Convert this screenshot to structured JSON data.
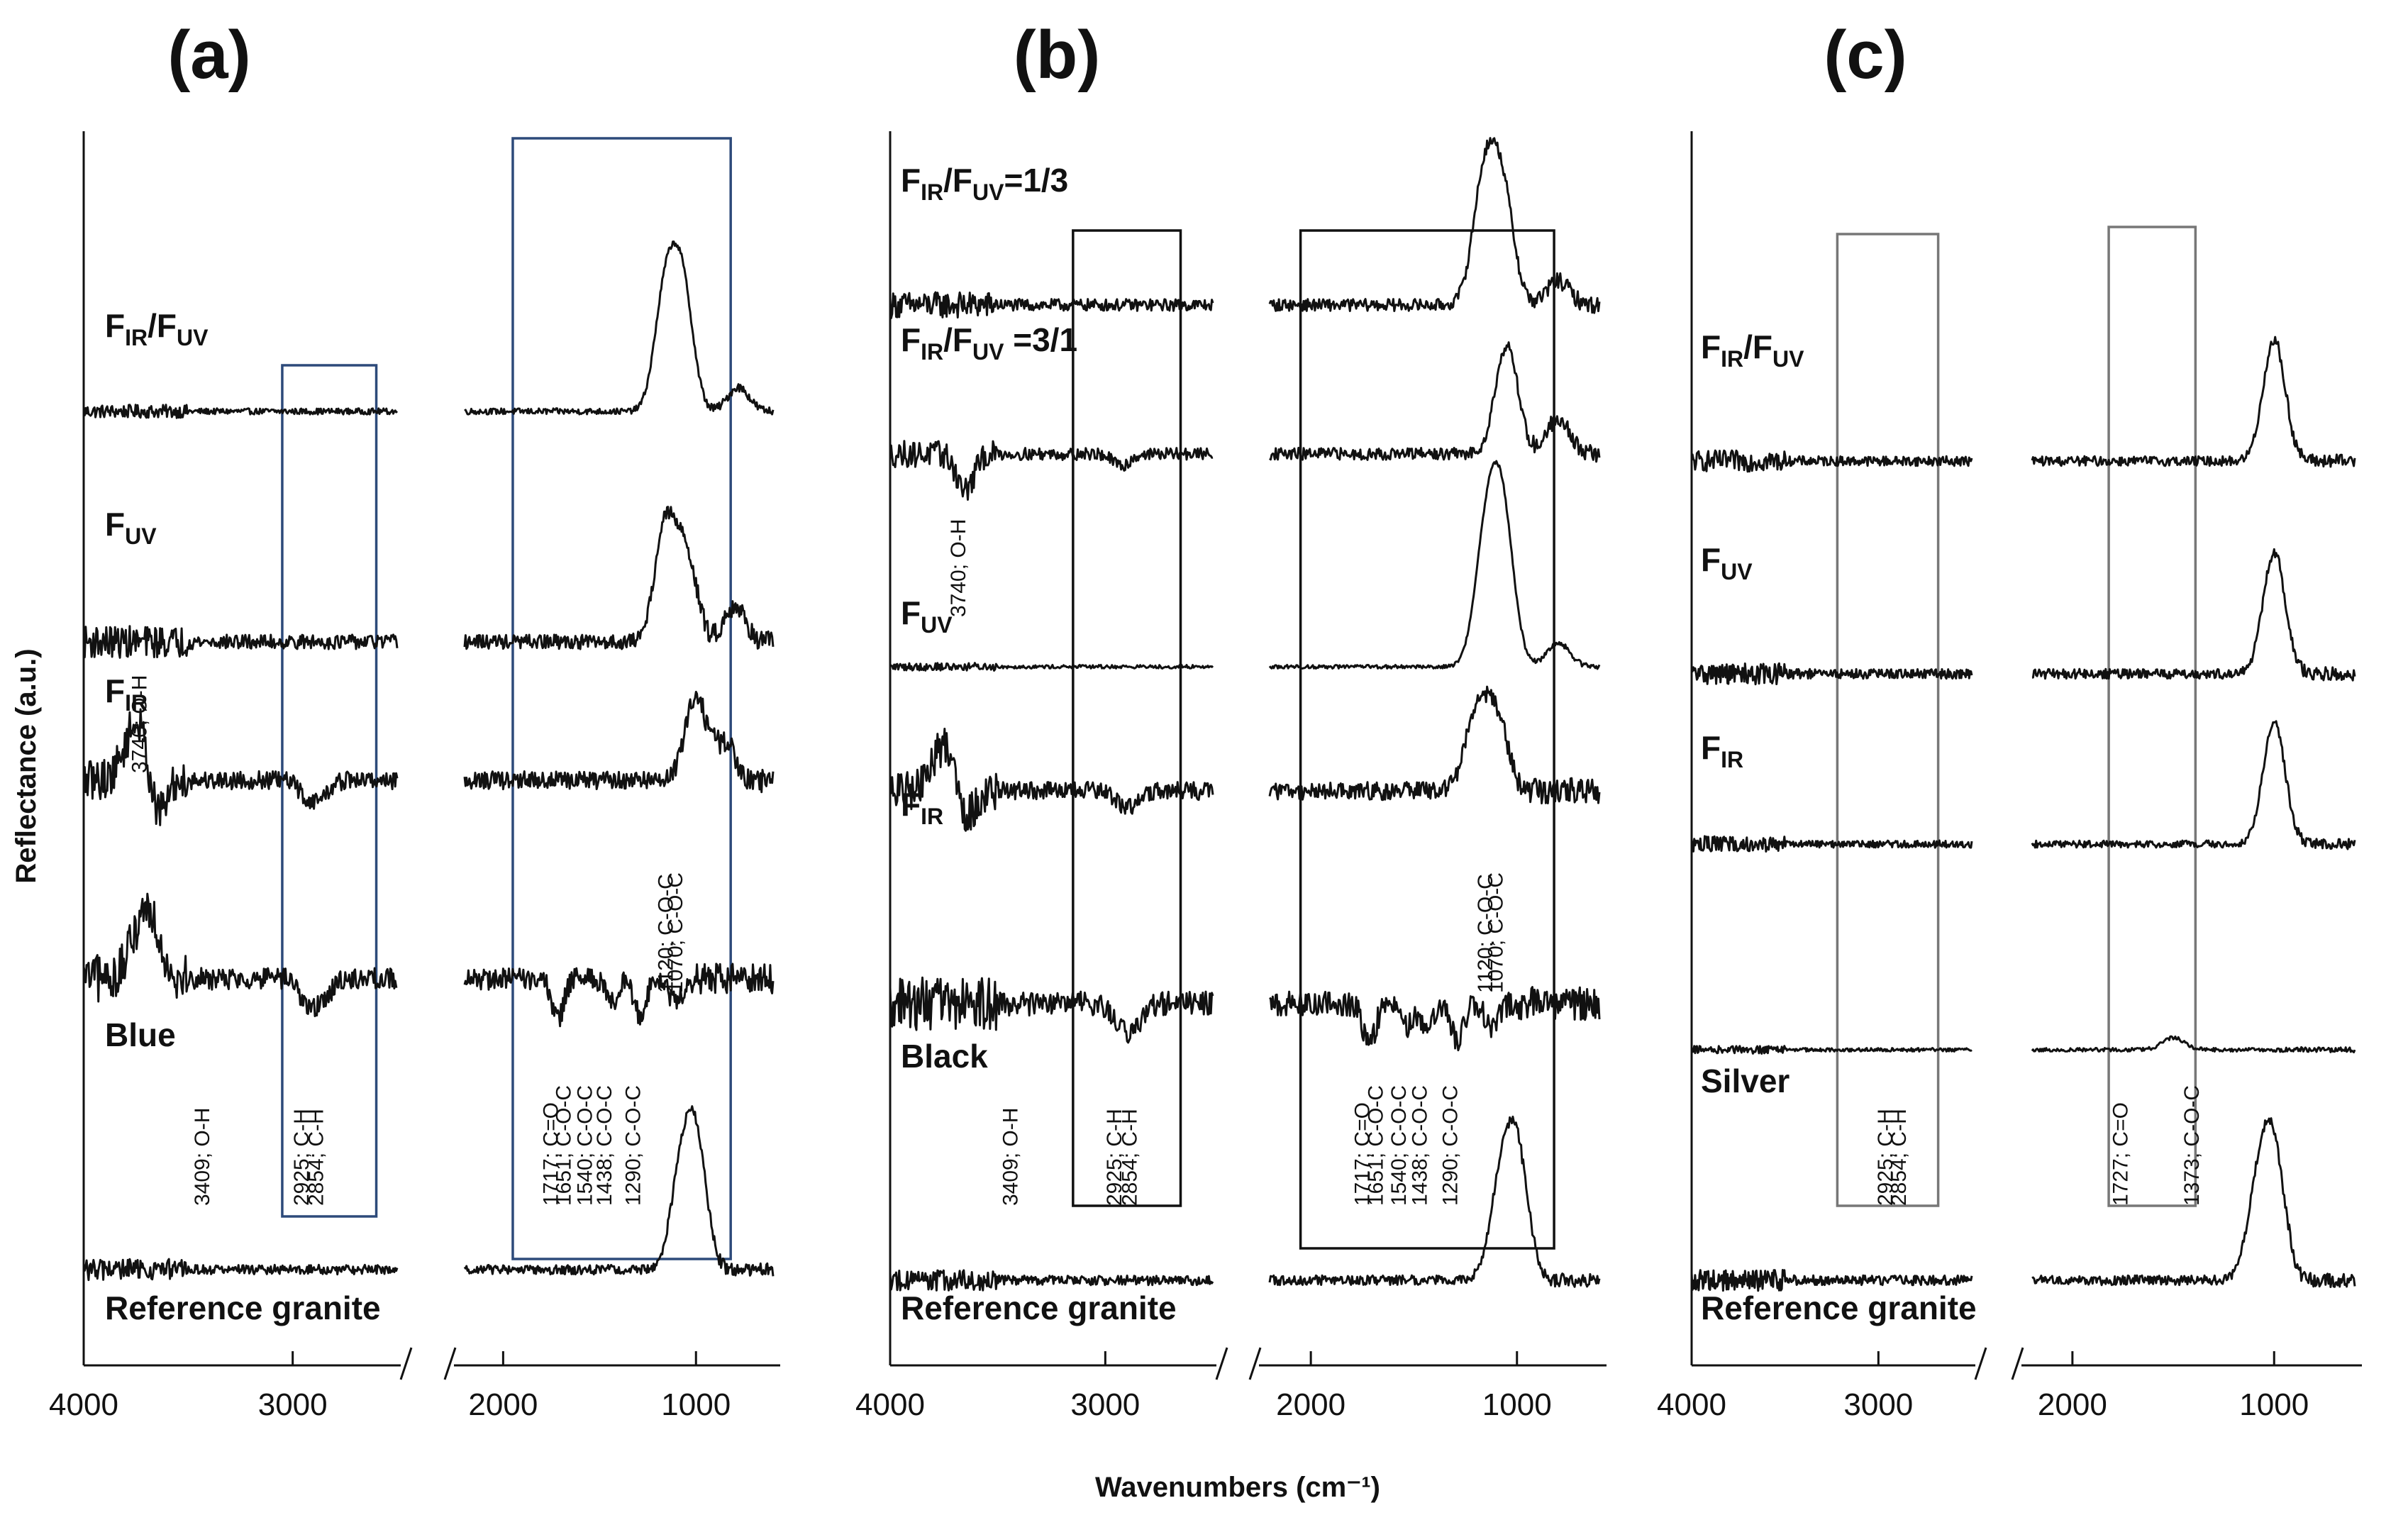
{
  "chart_data": {
    "type": "line",
    "xlabel": "Wavenumbers (cm⁻¹)",
    "ylabel": "Reflectance (a.u.)",
    "x_unit": "cm-1",
    "x_ranges": [
      [
        4000,
        2500
      ],
      [
        2200,
        600
      ]
    ],
    "x_ticks": [
      4000,
      3000,
      2000,
      1000
    ],
    "panels": [
      {
        "label": "(a)",
        "series": [
          {
            "name": "F_IR/F_UV",
            "label_main": "F",
            "sub1": "IR",
            "slash": "/F",
            "sub2": "UV",
            "label_suffix": "",
            "peaks": [
              [
                1160,
                0.95
              ],
              [
                1070,
                1.0
              ],
              [
                780,
                0.2
              ]
            ],
            "noise": 0.05
          },
          {
            "name": "F_UV",
            "label_main": "F",
            "sub1": "UV",
            "slash": "",
            "sub2": "",
            "label_suffix": "",
            "peaks": [
              [
                1160,
                0.95
              ],
              [
                1050,
                0.7
              ],
              [
                800,
                0.3
              ]
            ],
            "noise": 0.12
          },
          {
            "name": "F_IR",
            "label_main": "F",
            "sub1": "IR",
            "slash": "",
            "sub2": "",
            "label_suffix": "",
            "peaks": [
              [
                3740,
                0.5
              ],
              [
                1000,
                0.7
              ],
              [
                850,
                0.3
              ]
            ],
            "dips": [
              [
                3650,
                0.4
              ],
              [
                2925,
                0.15
              ],
              [
                2854,
                0.1
              ]
            ],
            "noise": 0.15
          },
          {
            "name": "Blue",
            "label_main": "Blue",
            "sub1": "",
            "slash": "",
            "sub2": "",
            "label_suffix": "",
            "peaks": [
              [
                3700,
                0.6
              ]
            ],
            "dips": [
              [
                2925,
                0.2
              ],
              [
                2854,
                0.15
              ],
              [
                1717,
                0.35
              ],
              [
                1438,
                0.2
              ],
              [
                1290,
                0.3
              ],
              [
                1120,
                0.15
              ],
              [
                1070,
                0.1
              ]
            ],
            "noise": 0.18
          },
          {
            "name": "Reference granite",
            "label_main": "Reference granite",
            "sub1": "",
            "slash": "",
            "sub2": "",
            "label_suffix": "",
            "peaks": [
              [
                1000,
                1.0
              ],
              [
                1080,
                0.7
              ]
            ],
            "noise": 0.08
          }
        ],
        "boxes": [
          {
            "x_from": 3050,
            "x_to": 2600,
            "color": "#2d4a7a"
          },
          {
            "x_from": 1950,
            "x_to": 820,
            "color": "#2d4a7a"
          }
        ],
        "annotations": [
          {
            "text": "3740; O-H",
            "x": 3700,
            "color": "#111111"
          },
          {
            "text": "3409; O-H",
            "x": 3400,
            "color": "#1f3f6e"
          },
          {
            "text": "2925; C-H",
            "x": 2925,
            "color": "#1f3f6e"
          },
          {
            "text": "2854; C-H",
            "x": 2854,
            "color": "#1f3f6e"
          },
          {
            "text": "1717; C=O",
            "x": 1717,
            "color": "#1f3f6e"
          },
          {
            "text": "1651; C-O-C",
            "x": 1651,
            "color": "#1f3f6e"
          },
          {
            "text": "1540; C-O-C",
            "x": 1540,
            "color": "#1f3f6e"
          },
          {
            "text": "1438; C-O-C",
            "x": 1438,
            "color": "#1f3f6e"
          },
          {
            "text": "1290; C-O-C",
            "x": 1290,
            "color": "#1f3f6e"
          },
          {
            "text": "1120; C-O-C",
            "x": 1120,
            "color": "#1f3f6e"
          },
          {
            "text": "1070; C-O-C",
            "x": 1070,
            "color": "#1f3f6e"
          }
        ]
      },
      {
        "label": "(b)",
        "series": [
          {
            "name": "F_IR/F_UV=1/3",
            "label_main": "F",
            "sub1": "IR",
            "slash": "/F",
            "sub2": "UV",
            "label_suffix": "=1/3",
            "peaks": [
              [
                1160,
                1.0
              ],
              [
                1070,
                0.9
              ],
              [
                800,
                0.2
              ]
            ],
            "noise": 0.1
          },
          {
            "name": "F_IR/F_UV =3/1",
            "label_main": "F",
            "sub1": "IR",
            "slash": "/F",
            "sub2": "UV",
            "label_suffix": " =3/1",
            "peaks": [
              [
                1050,
                0.9
              ],
              [
                800,
                0.3
              ]
            ],
            "dips": [
              [
                3650,
                0.3
              ],
              [
                2925,
                0.1
              ]
            ],
            "noise": 0.1
          },
          {
            "name": "F_UV",
            "label_main": "F",
            "sub1": "UV",
            "slash": "",
            "sub2": "",
            "label_suffix": "",
            "peaks": [
              [
                1150,
                1.0
              ],
              [
                1070,
                1.2
              ],
              [
                800,
                0.2
              ]
            ],
            "noise": 0.03
          },
          {
            "name": "F_IR",
            "label_main": "F",
            "sub1": "IR",
            "slash": "",
            "sub2": "",
            "label_suffix": "",
            "peaks": [
              [
                3740,
                0.4
              ],
              [
                1200,
                0.6
              ],
              [
                1100,
                0.6
              ]
            ],
            "dips": [
              [
                3650,
                0.3
              ],
              [
                2925,
                0.1
              ],
              [
                2854,
                0.08
              ]
            ],
            "noise": 0.15
          },
          {
            "name": "Black",
            "label_main": "Black",
            "sub1": "",
            "slash": "",
            "sub2": "",
            "label_suffix": "",
            "dips": [
              [
                2925,
                0.2
              ],
              [
                2854,
                0.15
              ],
              [
                1717,
                0.35
              ],
              [
                1540,
                0.2
              ],
              [
                1438,
                0.2
              ],
              [
                1290,
                0.3
              ],
              [
                1120,
                0.2
              ]
            ],
            "noise": 0.2
          },
          {
            "name": "Reference granite",
            "label_main": "Reference granite",
            "sub1": "",
            "slash": "",
            "sub2": "",
            "label_suffix": "",
            "peaks": [
              [
                1000,
                1.0
              ],
              [
                1080,
                0.7
              ]
            ],
            "noise": 0.08
          }
        ],
        "boxes": [
          {
            "x_from": 3150,
            "x_to": 2650,
            "color": "#111111"
          },
          {
            "x_from": 2050,
            "x_to": 820,
            "color": "#111111"
          }
        ],
        "annotations": [
          {
            "text": "3740; O-H",
            "x": 3650,
            "color": "#111111"
          },
          {
            "text": "3409; O-H",
            "x": 3409,
            "color": "#111111"
          },
          {
            "text": "2925; C-H",
            "x": 2925,
            "color": "#111111"
          },
          {
            "text": "2854; C-H",
            "x": 2854,
            "color": "#111111"
          },
          {
            "text": "1717; C=O",
            "x": 1717,
            "color": "#111111"
          },
          {
            "text": "1651; C-O-C",
            "x": 1651,
            "color": "#111111"
          },
          {
            "text": "1540; C-O-C",
            "x": 1540,
            "color": "#111111"
          },
          {
            "text": "1438; C-O-C",
            "x": 1438,
            "color": "#111111"
          },
          {
            "text": "1290; C-O-C",
            "x": 1290,
            "color": "#111111"
          },
          {
            "text": "1120; C-O-C",
            "x": 1120,
            "color": "#111111"
          },
          {
            "text": "1070; C-O-C",
            "x": 1070,
            "color": "#111111"
          }
        ]
      },
      {
        "label": "(c)",
        "series": [
          {
            "name": "F_IR/F_UV",
            "label_main": "F",
            "sub1": "IR",
            "slash": "/F",
            "sub2": "UV",
            "label_suffix": "",
            "peaks": [
              [
                1000,
                1.0
              ]
            ],
            "noise": 0.08
          },
          {
            "name": "F_UV",
            "label_main": "F",
            "sub1": "UV",
            "slash": "",
            "sub2": "",
            "label_suffix": "",
            "peaks": [
              [
                1000,
                1.0
              ]
            ],
            "noise": 0.08
          },
          {
            "name": "F_IR",
            "label_main": "F",
            "sub1": "IR",
            "slash": "",
            "sub2": "",
            "label_suffix": "",
            "peaks": [
              [
                1000,
                1.0
              ]
            ],
            "noise": 0.06
          },
          {
            "name": "Silver",
            "label_main": "Silver",
            "sub1": "",
            "slash": "",
            "sub2": "",
            "label_suffix": "",
            "peaks": [
              [
                1500,
                0.1
              ]
            ],
            "noise": 0.03
          },
          {
            "name": "Reference granite",
            "label_main": "Reference granite",
            "sub1": "",
            "slash": "",
            "sub2": "",
            "label_suffix": "",
            "peaks": [
              [
                1000,
                1.0
              ],
              [
                1080,
                0.7
              ]
            ],
            "noise": 0.08
          }
        ],
        "boxes": [
          {
            "x_from": 3220,
            "x_to": 2680,
            "color": "#777777"
          },
          {
            "x_from": 1820,
            "x_to": 1390,
            "color": "#777777"
          }
        ],
        "annotations": [
          {
            "text": "2925; C-H",
            "x": 2925,
            "color": "#111111"
          },
          {
            "text": "2854; C-H",
            "x": 2854,
            "color": "#111111"
          },
          {
            "text": "1727; C=O",
            "x": 1727,
            "color": "#111111"
          },
          {
            "text": "1373; C-O-C",
            "x": 1373,
            "color": "#111111"
          }
        ]
      }
    ]
  }
}
